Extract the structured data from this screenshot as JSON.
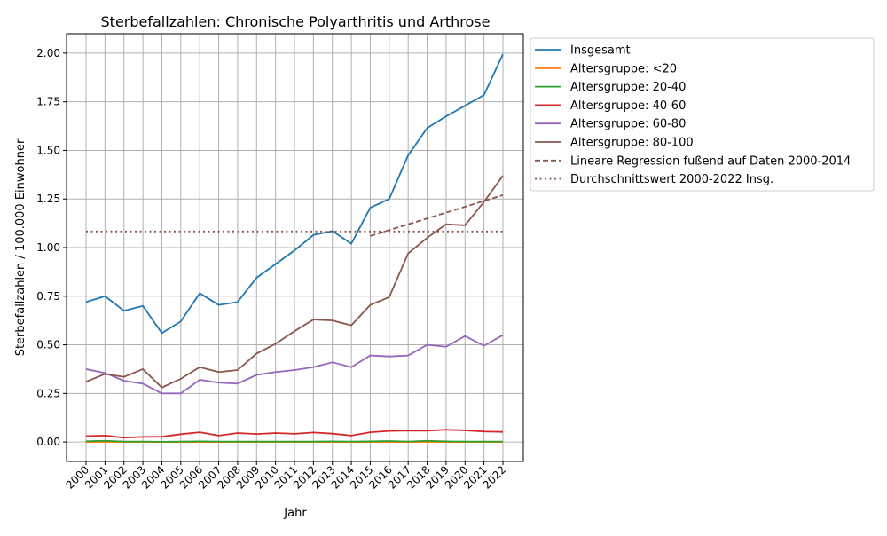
{
  "chart_data": {
    "type": "line",
    "title": "Sterbefallzahlen: Chronische Polyarthritis und Arthrose",
    "xlabel": "Jahr",
    "ylabel": "Sterbefallzahlen / 100.000 Einwohner",
    "ylim": [
      -0.1,
      2.1
    ],
    "yticks": [
      "0.00",
      "0.25",
      "0.50",
      "0.75",
      "1.00",
      "1.25",
      "1.50",
      "1.75",
      "2.00"
    ],
    "grid": true,
    "legend_position": "outside-top-right",
    "x": [
      2000,
      2001,
      2002,
      2003,
      2004,
      2005,
      2006,
      2007,
      2008,
      2009,
      2010,
      2011,
      2012,
      2013,
      2014,
      2015,
      2016,
      2017,
      2018,
      2019,
      2020,
      2021,
      2022
    ],
    "series": [
      {
        "name": "Insgesamt",
        "color": "#1f77b4",
        "style": "solid",
        "values": [
          0.72,
          0.75,
          0.675,
          0.7,
          0.56,
          0.62,
          0.765,
          0.705,
          0.72,
          0.845,
          0.915,
          0.985,
          1.065,
          1.085,
          1.02,
          1.205,
          1.25,
          1.475,
          1.615,
          1.675,
          1.73,
          1.785,
          1.995
        ]
      },
      {
        "name": "Altersgruppe: <20",
        "color": "#ff7f0e",
        "style": "solid",
        "values": [
          0,
          0,
          0,
          0,
          0,
          0,
          0,
          0,
          0,
          0,
          0,
          0,
          0,
          0,
          0,
          0,
          0,
          0,
          0,
          0,
          0,
          0,
          0
        ]
      },
      {
        "name": "Altersgruppe: 20-40",
        "color": "#2ca02c",
        "style": "solid",
        "values": [
          0.004,
          0.006,
          0.002,
          0.002,
          0.001,
          0.002,
          0.003,
          0.002,
          0.002,
          0.002,
          0.002,
          0.002,
          0.002,
          0.003,
          0.002,
          0.003,
          0.005,
          0.002,
          0.006,
          0.003,
          0.002,
          0.002,
          0.002
        ]
      },
      {
        "name": "Altersgruppe: 40-60",
        "color": "#d62728",
        "style": "solid",
        "values": [
          0.03,
          0.033,
          0.022,
          0.026,
          0.027,
          0.04,
          0.05,
          0.033,
          0.046,
          0.041,
          0.046,
          0.042,
          0.049,
          0.043,
          0.033,
          0.05,
          0.057,
          0.059,
          0.058,
          0.063,
          0.06,
          0.054,
          0.052
        ]
      },
      {
        "name": "Altersgruppe: 60-80",
        "color": "#9467bd",
        "style": "solid",
        "values": [
          0.375,
          0.355,
          0.315,
          0.3,
          0.25,
          0.25,
          0.32,
          0.305,
          0.3,
          0.345,
          0.36,
          0.37,
          0.385,
          0.41,
          0.385,
          0.445,
          0.44,
          0.445,
          0.5,
          0.49,
          0.545,
          0.495,
          0.55
        ]
      },
      {
        "name": "Altersgruppe: 80-100",
        "color": "#8c564b",
        "style": "solid",
        "values": [
          0.31,
          0.35,
          0.335,
          0.375,
          0.28,
          0.325,
          0.385,
          0.36,
          0.37,
          0.455,
          0.505,
          0.57,
          0.63,
          0.625,
          0.6,
          0.705,
          0.745,
          0.97,
          1.05,
          1.12,
          1.115,
          1.235,
          1.37
        ]
      },
      {
        "name": "Lineare Regression fußend auf Daten 2000-2014",
        "color": "#8c564b",
        "style": "dashed",
        "x": [
          2015,
          2022
        ],
        "values": [
          1.06,
          1.27
        ]
      },
      {
        "name": "Durchschnittswert 2000-2022 Insg.",
        "color": "#8c564b",
        "style": "dotted",
        "x": [
          2000,
          2022
        ],
        "values": [
          1.083,
          1.083
        ]
      }
    ]
  }
}
